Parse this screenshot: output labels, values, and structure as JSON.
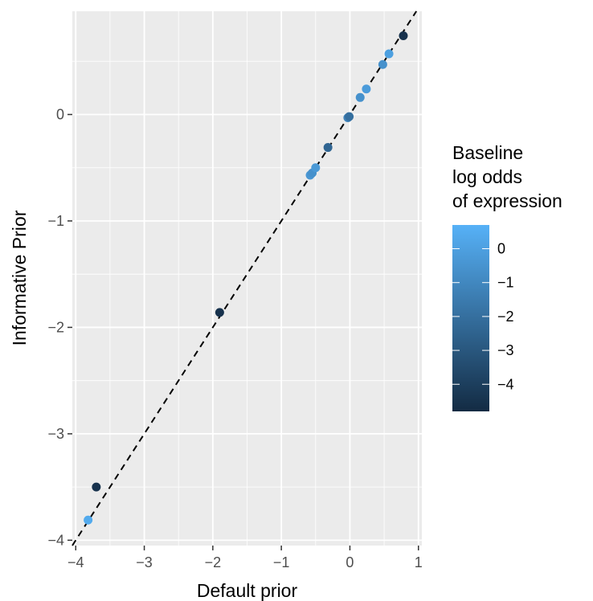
{
  "chart_data": {
    "type": "scatter",
    "title": "",
    "xlabel": "Default prior",
    "ylabel": "Informative Prior",
    "xlim": [
      -4.05,
      1.05
    ],
    "ylim": [
      -4.05,
      0.97
    ],
    "x_ticks": [
      -4,
      -3,
      -2,
      -1,
      0,
      1
    ],
    "x_tick_labels": [
      "−4",
      "−3",
      "−2",
      "−1",
      "0",
      "1"
    ],
    "y_ticks": [
      -4,
      -3,
      -2,
      -1,
      0
    ],
    "y_tick_labels": [
      "−4",
      "−3",
      "−2",
      "−1",
      "0"
    ],
    "grid": true,
    "reference_line": {
      "type": "identity",
      "style": "dashed",
      "color": "#000000"
    },
    "points": [
      {
        "x": -3.82,
        "y": -3.81,
        "baseline": 0.4
      },
      {
        "x": -3.7,
        "y": -3.5,
        "baseline": -4.5
      },
      {
        "x": -1.9,
        "y": -1.86,
        "baseline": -4.5
      },
      {
        "x": -0.58,
        "y": -0.57,
        "baseline": -0.4
      },
      {
        "x": -0.55,
        "y": -0.55,
        "baseline": -0.6
      },
      {
        "x": -0.5,
        "y": -0.5,
        "baseline": -0.3
      },
      {
        "x": -0.32,
        "y": -0.31,
        "baseline": -2.4
      },
      {
        "x": -0.03,
        "y": -0.03,
        "baseline": -1.2
      },
      {
        "x": -0.01,
        "y": -0.02,
        "baseline": -2.0
      },
      {
        "x": 0.15,
        "y": 0.16,
        "baseline": -0.6
      },
      {
        "x": 0.24,
        "y": 0.24,
        "baseline": -0.2
      },
      {
        "x": 0.48,
        "y": 0.47,
        "baseline": -0.6
      },
      {
        "x": 0.57,
        "y": 0.57,
        "baseline": 0.0
      },
      {
        "x": 0.78,
        "y": 0.74,
        "baseline": -4.5
      }
    ],
    "legend": {
      "title_lines": [
        "Baseline",
        "log odds",
        "of expression"
      ],
      "placement": "right",
      "range": [
        -4.8,
        0.7
      ],
      "ticks": [
        0,
        -1,
        -2,
        -3,
        -4
      ],
      "tick_labels": [
        "0",
        "−1",
        "−2",
        "−3",
        "−4"
      ],
      "color_low": "#132B43",
      "color_high": "#56B1F7"
    },
    "panel_color": "#EBEBEB",
    "grid_color": "#FFFFFF"
  }
}
